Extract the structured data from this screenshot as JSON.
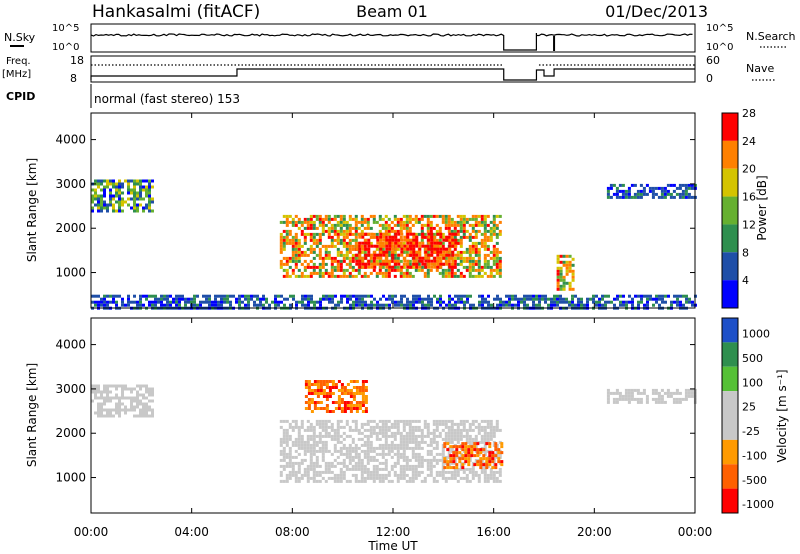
{
  "header": {
    "station": "Hankasalmi (fitACF)",
    "beam": "Beam 01",
    "date": "01/Dec/2013"
  },
  "cpid": {
    "label": "CPID",
    "text": "normal (fast stereo) 153"
  },
  "noise_panel": {
    "left_label": "N.Sky",
    "right_label": "N.Search",
    "left_ticks": [
      "10^5",
      "10^0"
    ],
    "right_ticks": [
      "10^5",
      "10^0"
    ]
  },
  "freq_panel": {
    "left_label_1": "Freq.",
    "left_label_2": "[MHz]",
    "right_label": "Nave",
    "left_ticks": [
      "18",
      "8"
    ],
    "right_ticks": [
      "60",
      "0"
    ]
  },
  "chart_data": [
    {
      "type": "heatmap",
      "title": "",
      "quantity": "Power",
      "ylabel": "Slant Range [km]",
      "ylim": [
        200,
        4600
      ],
      "yticks": [
        1000,
        2000,
        3000,
        4000
      ],
      "colorbar_label": "Power [dB]",
      "colorbar_ticks": [
        "4",
        "8",
        "12",
        "16",
        "20",
        "24",
        "28"
      ],
      "colorbar_colors": [
        "#0000ff",
        "#1f4fa8",
        "#2f8f4f",
        "#66b030",
        "#d4c400",
        "#ff8000",
        "#ff0000"
      ],
      "regions": [
        {
          "t": [
            0.0,
            2.5
          ],
          "r": [
            2400,
            3100
          ],
          "level": "low-mid"
        },
        {
          "t": [
            7.5,
            16.3
          ],
          "r": [
            900,
            2300
          ],
          "level": "mid-high"
        },
        {
          "t": [
            10.5,
            14.5
          ],
          "r": [
            1100,
            1900
          ],
          "level": "high"
        },
        {
          "t": [
            18.5,
            19.2
          ],
          "r": [
            600,
            1400
          ],
          "level": "mid-high"
        },
        {
          "t": [
            20.5,
            24.0
          ],
          "r": [
            2700,
            3000
          ],
          "level": "low"
        },
        {
          "t": [
            0.0,
            24.0
          ],
          "r": [
            200,
            500
          ],
          "level": "low"
        }
      ]
    },
    {
      "type": "heatmap",
      "title": "",
      "quantity": "Velocity",
      "ylabel": "Slant Range [km]",
      "ylim": [
        200,
        4600
      ],
      "yticks": [
        1000,
        2000,
        3000,
        4000
      ],
      "colorbar_label": "Velocity [m s⁻¹]",
      "colorbar_ticks": [
        "1000",
        "500",
        "100",
        "25",
        "-25",
        "-100",
        "-500",
        "-1000"
      ],
      "colorbar_colors": [
        "#1e50c8",
        "#2f8f4f",
        "#55c036",
        "#c8c8c8",
        "#c8c8c8",
        "#ff9a00",
        "#ff6000",
        "#ff0000"
      ],
      "regions": [
        {
          "t": [
            0.0,
            2.5
          ],
          "r": [
            2400,
            3100
          ],
          "level": "ground"
        },
        {
          "t": [
            7.5,
            16.3
          ],
          "r": [
            900,
            2300
          ],
          "level": "ground"
        },
        {
          "t": [
            8.5,
            11.0
          ],
          "r": [
            2500,
            3200
          ],
          "level": "negative"
        },
        {
          "t": [
            14.0,
            16.3
          ],
          "r": [
            1200,
            1800
          ],
          "level": "negative"
        },
        {
          "t": [
            20.5,
            24.0
          ],
          "r": [
            2700,
            3000
          ],
          "level": "ground"
        }
      ]
    }
  ],
  "xaxis": {
    "label": "Time UT",
    "ticks": [
      "00:00",
      "04:00",
      "08:00",
      "12:00",
      "16:00",
      "20:00",
      "00:00"
    ],
    "range_hours": [
      0,
      24
    ]
  }
}
